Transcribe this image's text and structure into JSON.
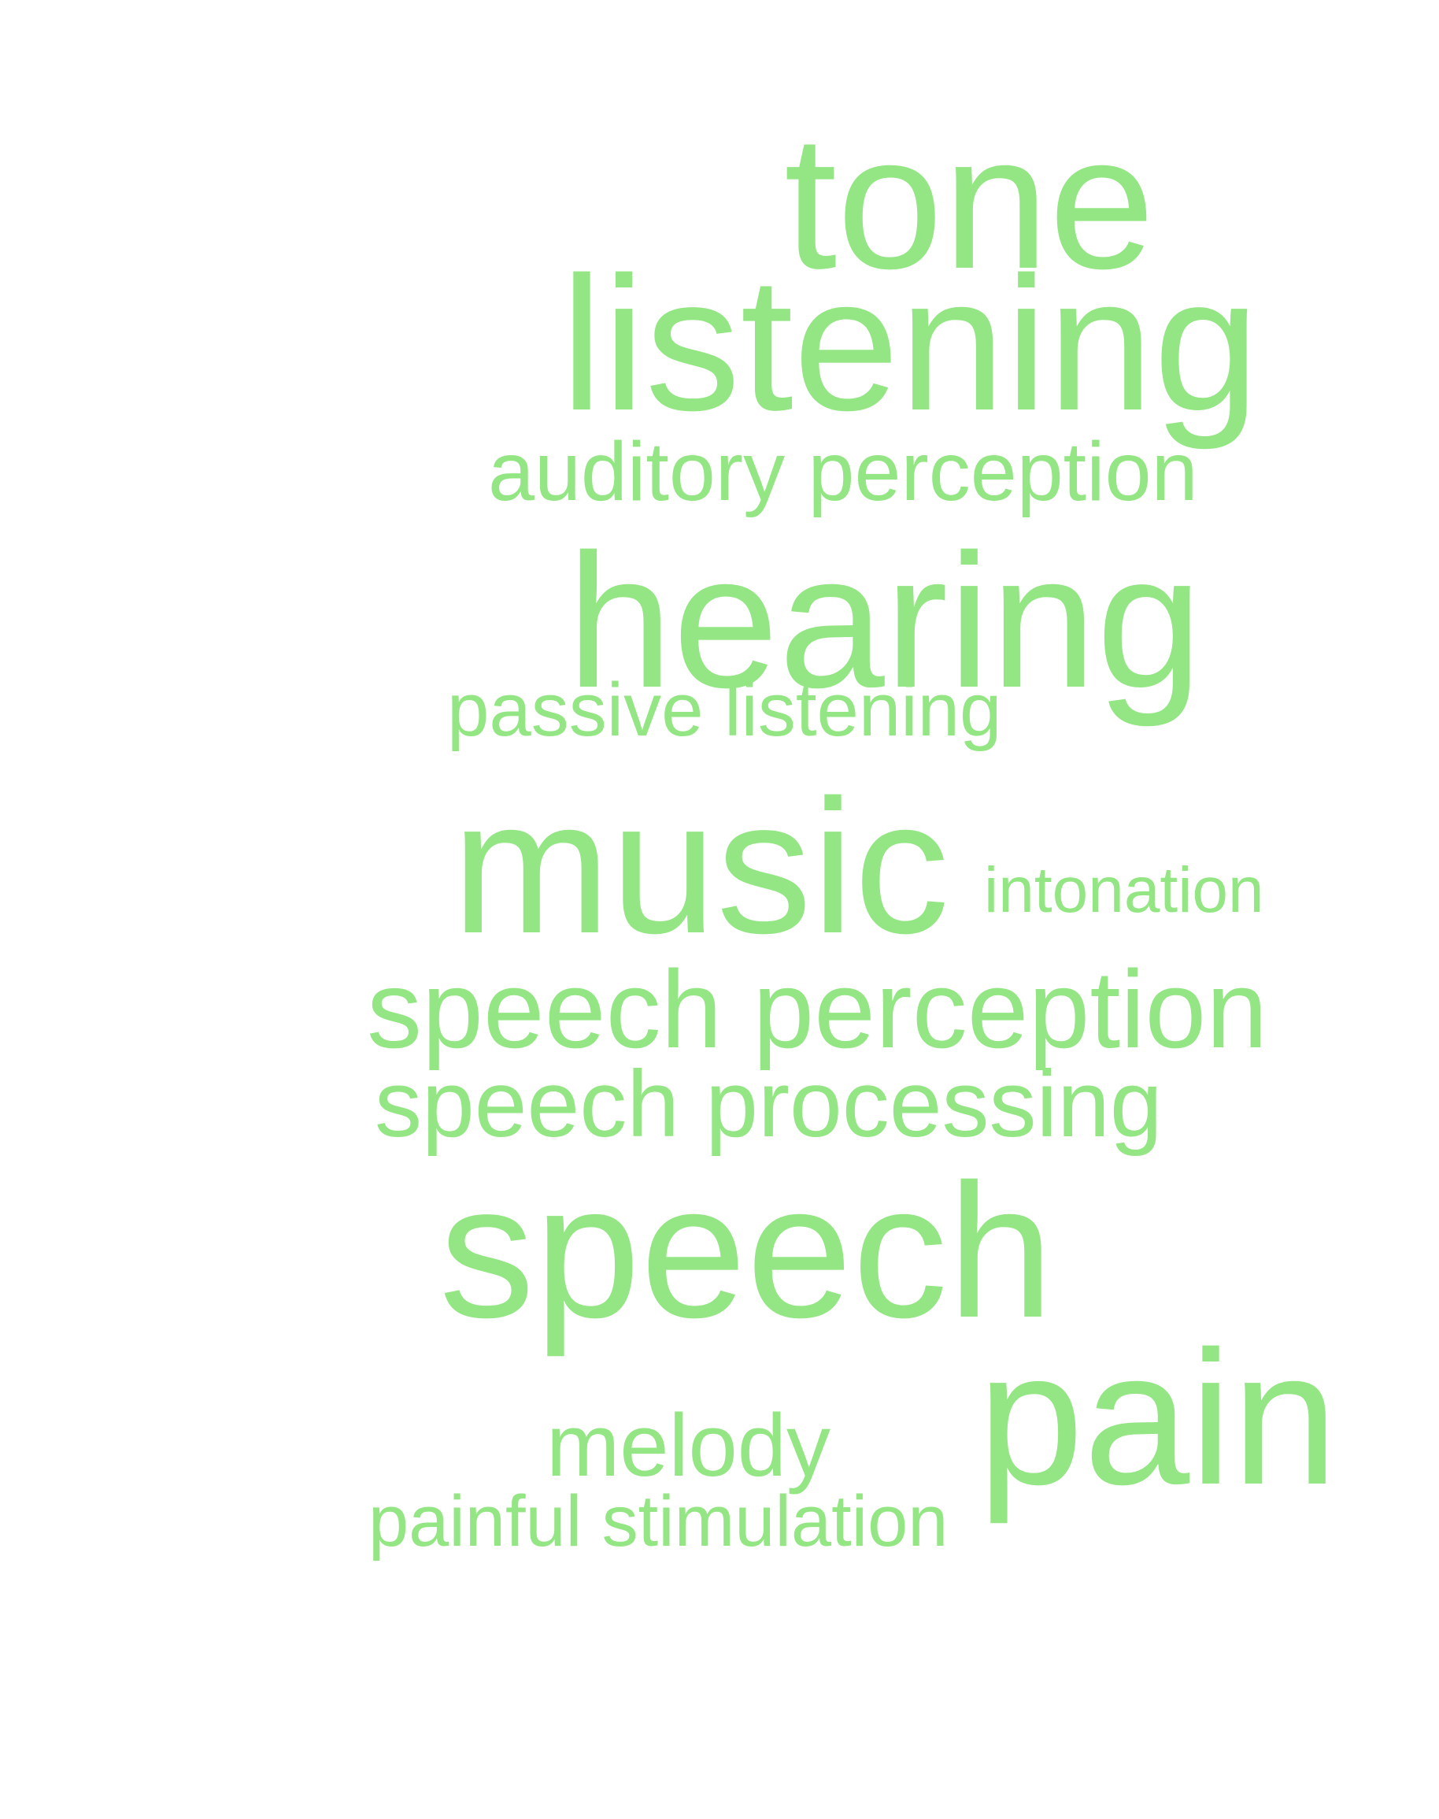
{
  "word_cloud": {
    "color": "#93e683",
    "background": "#ffffff",
    "words": [
      {
        "id": "tone",
        "text": "tone"
      },
      {
        "id": "listening",
        "text": "listening"
      },
      {
        "id": "auditory",
        "text": "auditory perception"
      },
      {
        "id": "hearing",
        "text": "hearing"
      },
      {
        "id": "passive",
        "text": "passive listening"
      },
      {
        "id": "music",
        "text": "music"
      },
      {
        "id": "intonation",
        "text": "intonation"
      },
      {
        "id": "speech_perception",
        "text": "speech perception"
      },
      {
        "id": "speech_processing",
        "text": "speech processing"
      },
      {
        "id": "speech",
        "text": "speech"
      },
      {
        "id": "melody",
        "text": "melody"
      },
      {
        "id": "pain",
        "text": "pain"
      },
      {
        "id": "painful",
        "text": "painful stimulation"
      }
    ]
  }
}
